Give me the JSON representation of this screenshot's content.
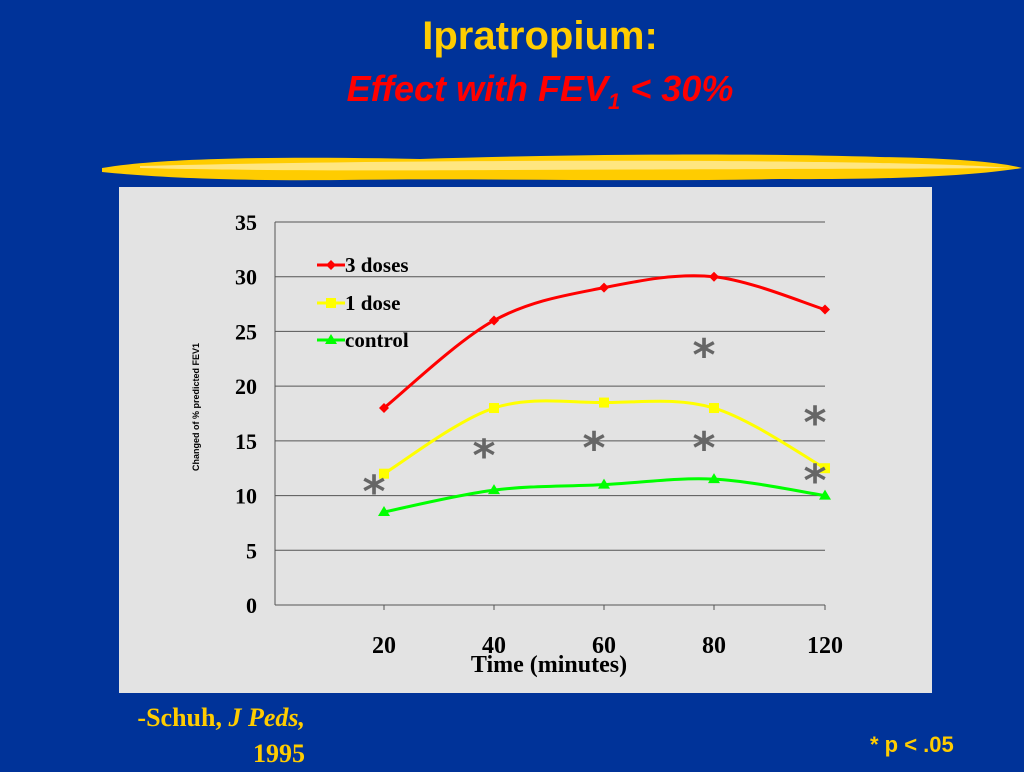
{
  "slide": {
    "title": "Ipratropium:",
    "subtitle_prefix": "Effect with FEV",
    "subtitle_subscript": "1",
    "subtitle_suffix": " < 30%",
    "citation_author": "-Schuh, ",
    "citation_journal": "J Peds,",
    "citation_year": "1995",
    "footnote": "* p < .05"
  },
  "colors": {
    "background": "#003399",
    "title": "#FFCC00",
    "subtitle": "#FF0000",
    "accent_brush": "#FFCC00",
    "plot_area": "#E3E3E3",
    "significance_mark": "#666666"
  },
  "chart_data": {
    "type": "line",
    "categories": [
      "20",
      "40",
      "60",
      "80",
      "120"
    ],
    "series": [
      {
        "name": "3 doses",
        "values": [
          18,
          26,
          29,
          30,
          27
        ],
        "color": "#FF0000",
        "marker": "diamond"
      },
      {
        "name": "1 dose",
        "values": [
          12,
          18,
          18.5,
          18,
          12.5
        ],
        "color": "#FFFF00",
        "marker": "square"
      },
      {
        "name": "control",
        "values": [
          8.5,
          10.5,
          11,
          11.5,
          10
        ],
        "color": "#00FF00",
        "marker": "triangle"
      }
    ],
    "ylim": [
      0,
      35
    ],
    "yticks": [
      "0",
      "5",
      "10",
      "15",
      "20",
      "25",
      "30",
      "35"
    ],
    "xlabel": "Time (minutes)",
    "ylabel": "Changed of % predicted FEV1",
    "grid": true,
    "legend_position": "top-left",
    "smooth": true,
    "significance_marker": "*",
    "significance_marks": [
      {
        "category": "20",
        "y": 11
      },
      {
        "category": "40",
        "y": 14.3
      },
      {
        "category": "60",
        "y": 15
      },
      {
        "category": "80",
        "y": 15
      },
      {
        "category": "80",
        "y": 23.5
      },
      {
        "category": "120",
        "y": 17.3
      },
      {
        "category": "120",
        "y": 12
      }
    ]
  }
}
